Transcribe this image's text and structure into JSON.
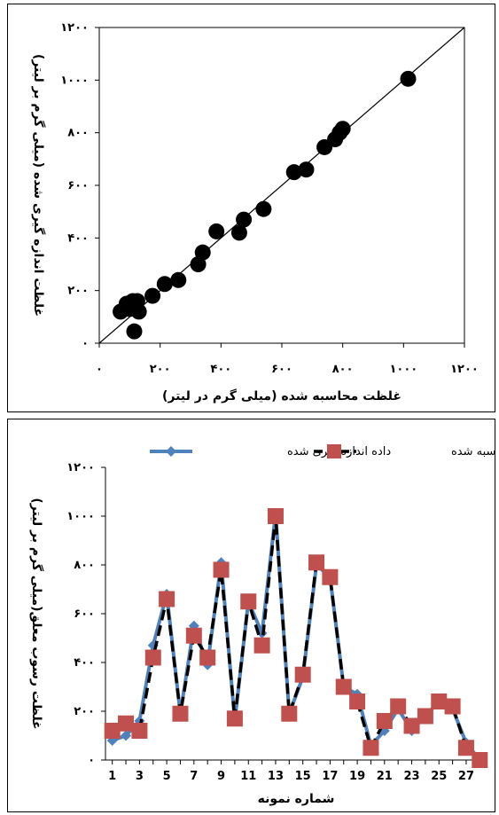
{
  "chart_data": [
    {
      "type": "scatter",
      "title": "",
      "xlabel": "غلظت محاسبه شده (میلی گرم در لیتر)",
      "ylabel": "غلظت اندازه گیری شده (میلی گرم بر لیتر)",
      "xlim": [
        0,
        1200
      ],
      "ylim": [
        0,
        1200
      ],
      "xticks": [
        0,
        200,
        400,
        600,
        800,
        1000,
        1200
      ],
      "yticks": [
        0,
        200,
        400,
        600,
        800,
        1000,
        1200
      ],
      "xtick_labels": [
        "۰",
        "۲۰۰",
        "۴۰۰",
        "۶۰۰",
        "۸۰۰",
        "۱۰۰۰",
        "۱۲۰۰"
      ],
      "ytick_labels": [
        "۰",
        "۲۰۰",
        "۴۰۰",
        "۶۰۰",
        "۸۰۰",
        "۱۰۰۰",
        "۱۲۰۰"
      ],
      "grid": false,
      "reference_line": "y = x",
      "marker_color": "#000000",
      "points": [
        {
          "x": 70,
          "y": 120
        },
        {
          "x": 90,
          "y": 150
        },
        {
          "x": 100,
          "y": 130
        },
        {
          "x": 110,
          "y": 160
        },
        {
          "x": 115,
          "y": 45
        },
        {
          "x": 125,
          "y": 160
        },
        {
          "x": 130,
          "y": 120
        },
        {
          "x": 175,
          "y": 180
        },
        {
          "x": 215,
          "y": 225
        },
        {
          "x": 260,
          "y": 240
        },
        {
          "x": 325,
          "y": 300
        },
        {
          "x": 340,
          "y": 345
        },
        {
          "x": 385,
          "y": 425
        },
        {
          "x": 460,
          "y": 420
        },
        {
          "x": 475,
          "y": 470
        },
        {
          "x": 540,
          "y": 510
        },
        {
          "x": 640,
          "y": 650
        },
        {
          "x": 680,
          "y": 660
        },
        {
          "x": 740,
          "y": 745
        },
        {
          "x": 775,
          "y": 775
        },
        {
          "x": 790,
          "y": 800
        },
        {
          "x": 800,
          "y": 815
        },
        {
          "x": 1015,
          "y": 1005
        }
      ]
    },
    {
      "type": "line",
      "title": "",
      "xlabel": "شماره نمونه",
      "ylabel": "غلظت رسوب معلق(میلی گرم بر لیتر)",
      "xlim": [
        0.5,
        28.5
      ],
      "ylim": [
        0,
        1200
      ],
      "x": [
        1,
        2,
        3,
        4,
        5,
        6,
        7,
        8,
        9,
        10,
        11,
        12,
        13,
        14,
        15,
        16,
        17,
        18,
        19,
        20,
        21,
        22,
        23,
        24,
        25,
        26,
        27,
        28
      ],
      "xtick_labels": [
        "1",
        "3",
        "5",
        "7",
        "9",
        "11",
        "13",
        "15",
        "17",
        "19",
        "21",
        "23",
        "25",
        "27"
      ],
      "ytick_labels": [
        "۰",
        "۲۰۰",
        "۴۰۰",
        "۶۰۰",
        "۸۰۰",
        "۱۰۰۰",
        "۱۲۰۰"
      ],
      "grid": false,
      "legend_position": "top",
      "series": [
        {
          "name": "داده اندازه گیری شده",
          "color": "#4F81BD",
          "marker": "diamond",
          "values": [
            80,
            100,
            160,
            470,
            680,
            190,
            550,
            390,
            810,
            160,
            650,
            520,
            1010,
            190,
            340,
            800,
            750,
            300,
            270,
            60,
            120,
            210,
            120,
            180,
            240,
            210,
            70,
            0
          ]
        },
        {
          "name": "داده محاسبه شده",
          "color": "#000000",
          "marker_color": "#C0504D",
          "marker": "square",
          "values": [
            120,
            150,
            120,
            420,
            660,
            190,
            510,
            420,
            780,
            170,
            650,
            470,
            1000,
            190,
            350,
            810,
            750,
            300,
            240,
            50,
            160,
            220,
            140,
            180,
            240,
            220,
            50,
            0
          ]
        }
      ]
    }
  ]
}
